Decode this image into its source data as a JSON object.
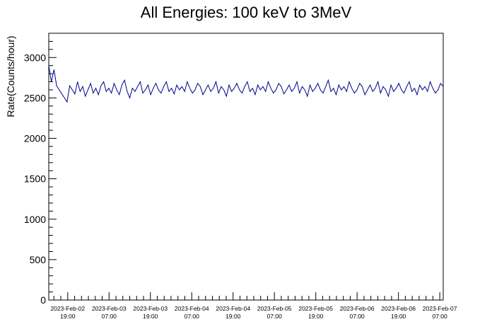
{
  "chart_data": {
    "type": "line",
    "title": "All Energies:  100 keV to 3MeV",
    "xlabel": "",
    "ylabel": "Rate(Counts/hour)",
    "ylim": [
      0,
      3300
    ],
    "yticks": [
      0,
      500,
      1000,
      1500,
      2000,
      2500,
      3000
    ],
    "xlim": [
      "2023-02-02 13:30",
      "2023-02-07 08:00"
    ],
    "xtick_labels": [
      {
        "date": "2023-Feb-02",
        "time": "19:00"
      },
      {
        "date": "2023-Feb-03",
        "time": "07:00"
      },
      {
        "date": "2023-Feb-03",
        "time": "19:00"
      },
      {
        "date": "2023-Feb-04",
        "time": "07:00"
      },
      {
        "date": "2023-Feb-04",
        "time": "19:00"
      },
      {
        "date": "2023-Feb-05",
        "time": "07:00"
      },
      {
        "date": "2023-Feb-05",
        "time": "19:00"
      },
      {
        "date": "2023-Feb-06",
        "time": "07:00"
      },
      {
        "date": "2023-Feb-06",
        "time": "19:00"
      },
      {
        "date": "2023-Feb-07",
        "time": "07:00"
      }
    ],
    "grid": false,
    "series": [
      {
        "color": "#00008b",
        "x_start": "2023-02-02 13:30",
        "x_end": "2023-02-07 08:00",
        "y": [
          2900,
          2700,
          2850,
          2650,
          2600,
          2550,
          2500,
          2450,
          2650,
          2600,
          2550,
          2700,
          2580,
          2640,
          2520,
          2600,
          2680,
          2560,
          2620,
          2540,
          2650,
          2700,
          2580,
          2620,
          2560,
          2680,
          2600,
          2540,
          2660,
          2720,
          2580,
          2500,
          2620,
          2580,
          2640,
          2700,
          2560,
          2600,
          2660,
          2540,
          2620,
          2680,
          2600,
          2560,
          2640,
          2700,
          2580,
          2620,
          2550,
          2660,
          2600,
          2640,
          2580,
          2700,
          2620,
          2560,
          2600,
          2680,
          2640,
          2540,
          2600,
          2660,
          2580,
          2620,
          2700,
          2560,
          2640,
          2600,
          2520,
          2660,
          2580,
          2620,
          2680,
          2600,
          2560,
          2640,
          2700,
          2580,
          2620,
          2540,
          2660,
          2600,
          2640,
          2580,
          2700,
          2620,
          2560,
          2600,
          2680,
          2640,
          2550,
          2600,
          2660,
          2580,
          2620,
          2700,
          2560,
          2640,
          2600,
          2520,
          2660,
          2580,
          2620,
          2680,
          2600,
          2560,
          2640,
          2720,
          2580,
          2620,
          2540,
          2660,
          2600,
          2640,
          2580,
          2700,
          2620,
          2560,
          2600,
          2680,
          2640,
          2540,
          2600,
          2660,
          2580,
          2620,
          2700,
          2560,
          2640,
          2600,
          2520,
          2660,
          2580,
          2620,
          2680,
          2600,
          2560,
          2640,
          2700,
          2580,
          2620,
          2540,
          2660,
          2600,
          2640,
          2580,
          2700,
          2620,
          2560,
          2600,
          2680,
          2640
        ]
      }
    ]
  }
}
